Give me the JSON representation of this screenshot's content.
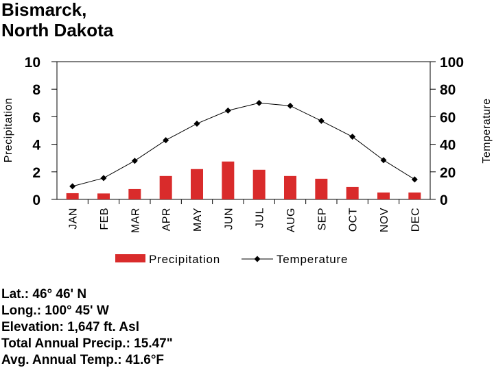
{
  "title": {
    "line1": "Bismarck,",
    "line2": "North Dakota"
  },
  "colors": {
    "bar": "#d92b2b",
    "line": "#000000",
    "marker": "#000000"
  },
  "chart_data": {
    "type": "bar+line",
    "categories": [
      "JAN",
      "FEB",
      "MAR",
      "APR",
      "MAY",
      "JUN",
      "JUL",
      "AUG",
      "SEP",
      "OCT",
      "NOV",
      "DEC"
    ],
    "series": [
      {
        "name": "Precipitation",
        "type": "bar",
        "axis": "left",
        "values": [
          0.45,
          0.43,
          0.75,
          1.7,
          2.2,
          2.75,
          2.15,
          1.7,
          1.5,
          0.9,
          0.5,
          0.5
        ]
      },
      {
        "name": "Temperature",
        "type": "line",
        "axis": "right",
        "values": [
          9.5,
          15.5,
          28,
          43,
          55,
          64.5,
          70,
          68,
          57,
          45.5,
          28.5,
          14.5
        ]
      }
    ],
    "ylabel": "Precipitation",
    "y2label": "Temperature",
    "ylim": [
      0,
      10
    ],
    "y2lim": [
      0,
      100
    ],
    "yticks": [
      0,
      2,
      4,
      6,
      8,
      10
    ],
    "y2ticks": [
      0,
      20,
      40,
      60,
      80,
      100
    ],
    "grid": false,
    "legend": {
      "position": "bottom",
      "entries": [
        "Precipitation",
        "Temperature"
      ]
    }
  },
  "stats": {
    "lat": "Lat.: 46° 46' N",
    "long": "Long.: 100° 45' W",
    "elevation": "Elevation: 1,647 ft. Asl",
    "precip": "Total Annual Precip.: 15.47\"",
    "temp": "Avg. Annual Temp.: 41.6°F"
  }
}
